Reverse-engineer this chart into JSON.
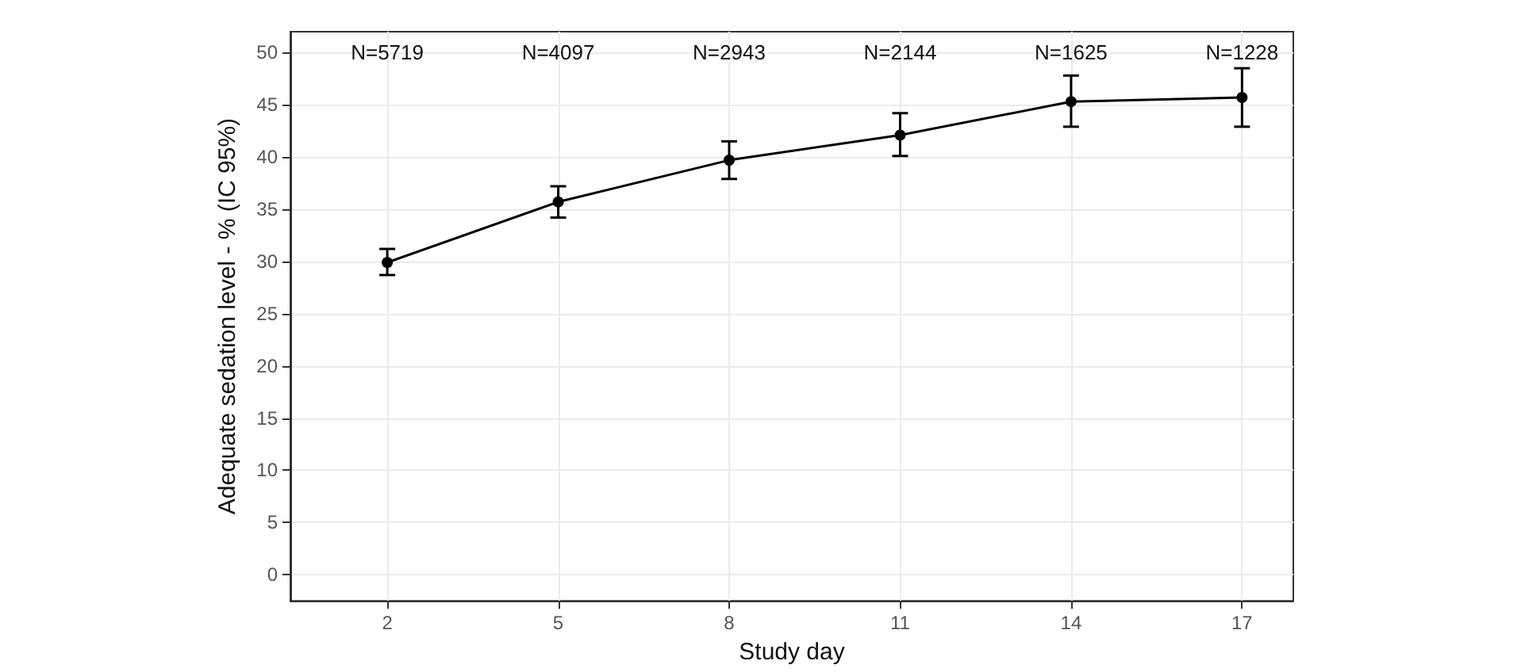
{
  "chart_data": {
    "type": "line",
    "xlabel": "Study day",
    "ylabel": "Adequate sedation level - % (IC 95%)",
    "x": [
      2,
      5,
      8,
      11,
      14,
      17
    ],
    "series": [
      {
        "color": "#000000",
        "values": [
          29.9,
          35.7,
          39.7,
          42.1,
          45.3,
          45.7
        ],
        "errors": [
          [
            28.7,
            31.2
          ],
          [
            34.2,
            37.2
          ],
          [
            37.9,
            41.5
          ],
          [
            40.1,
            44.2
          ],
          [
            42.9,
            47.8
          ],
          [
            42.9,
            48.5
          ]
        ]
      }
    ],
    "xlim": [
      0.3,
      17.9
    ],
    "xticks": [
      2,
      5,
      8,
      11,
      14,
      17
    ],
    "ylim": [
      -2.5,
      52
    ],
    "yticks": [
      0,
      5,
      10,
      15,
      20,
      25,
      30,
      35,
      40,
      45,
      50
    ],
    "grid": true,
    "marker": "circle",
    "line_style": "solid",
    "annotations": [
      "N=5719",
      "N=4097",
      "N=2943",
      "N=2144",
      "N=1625",
      "N=1228"
    ]
  }
}
